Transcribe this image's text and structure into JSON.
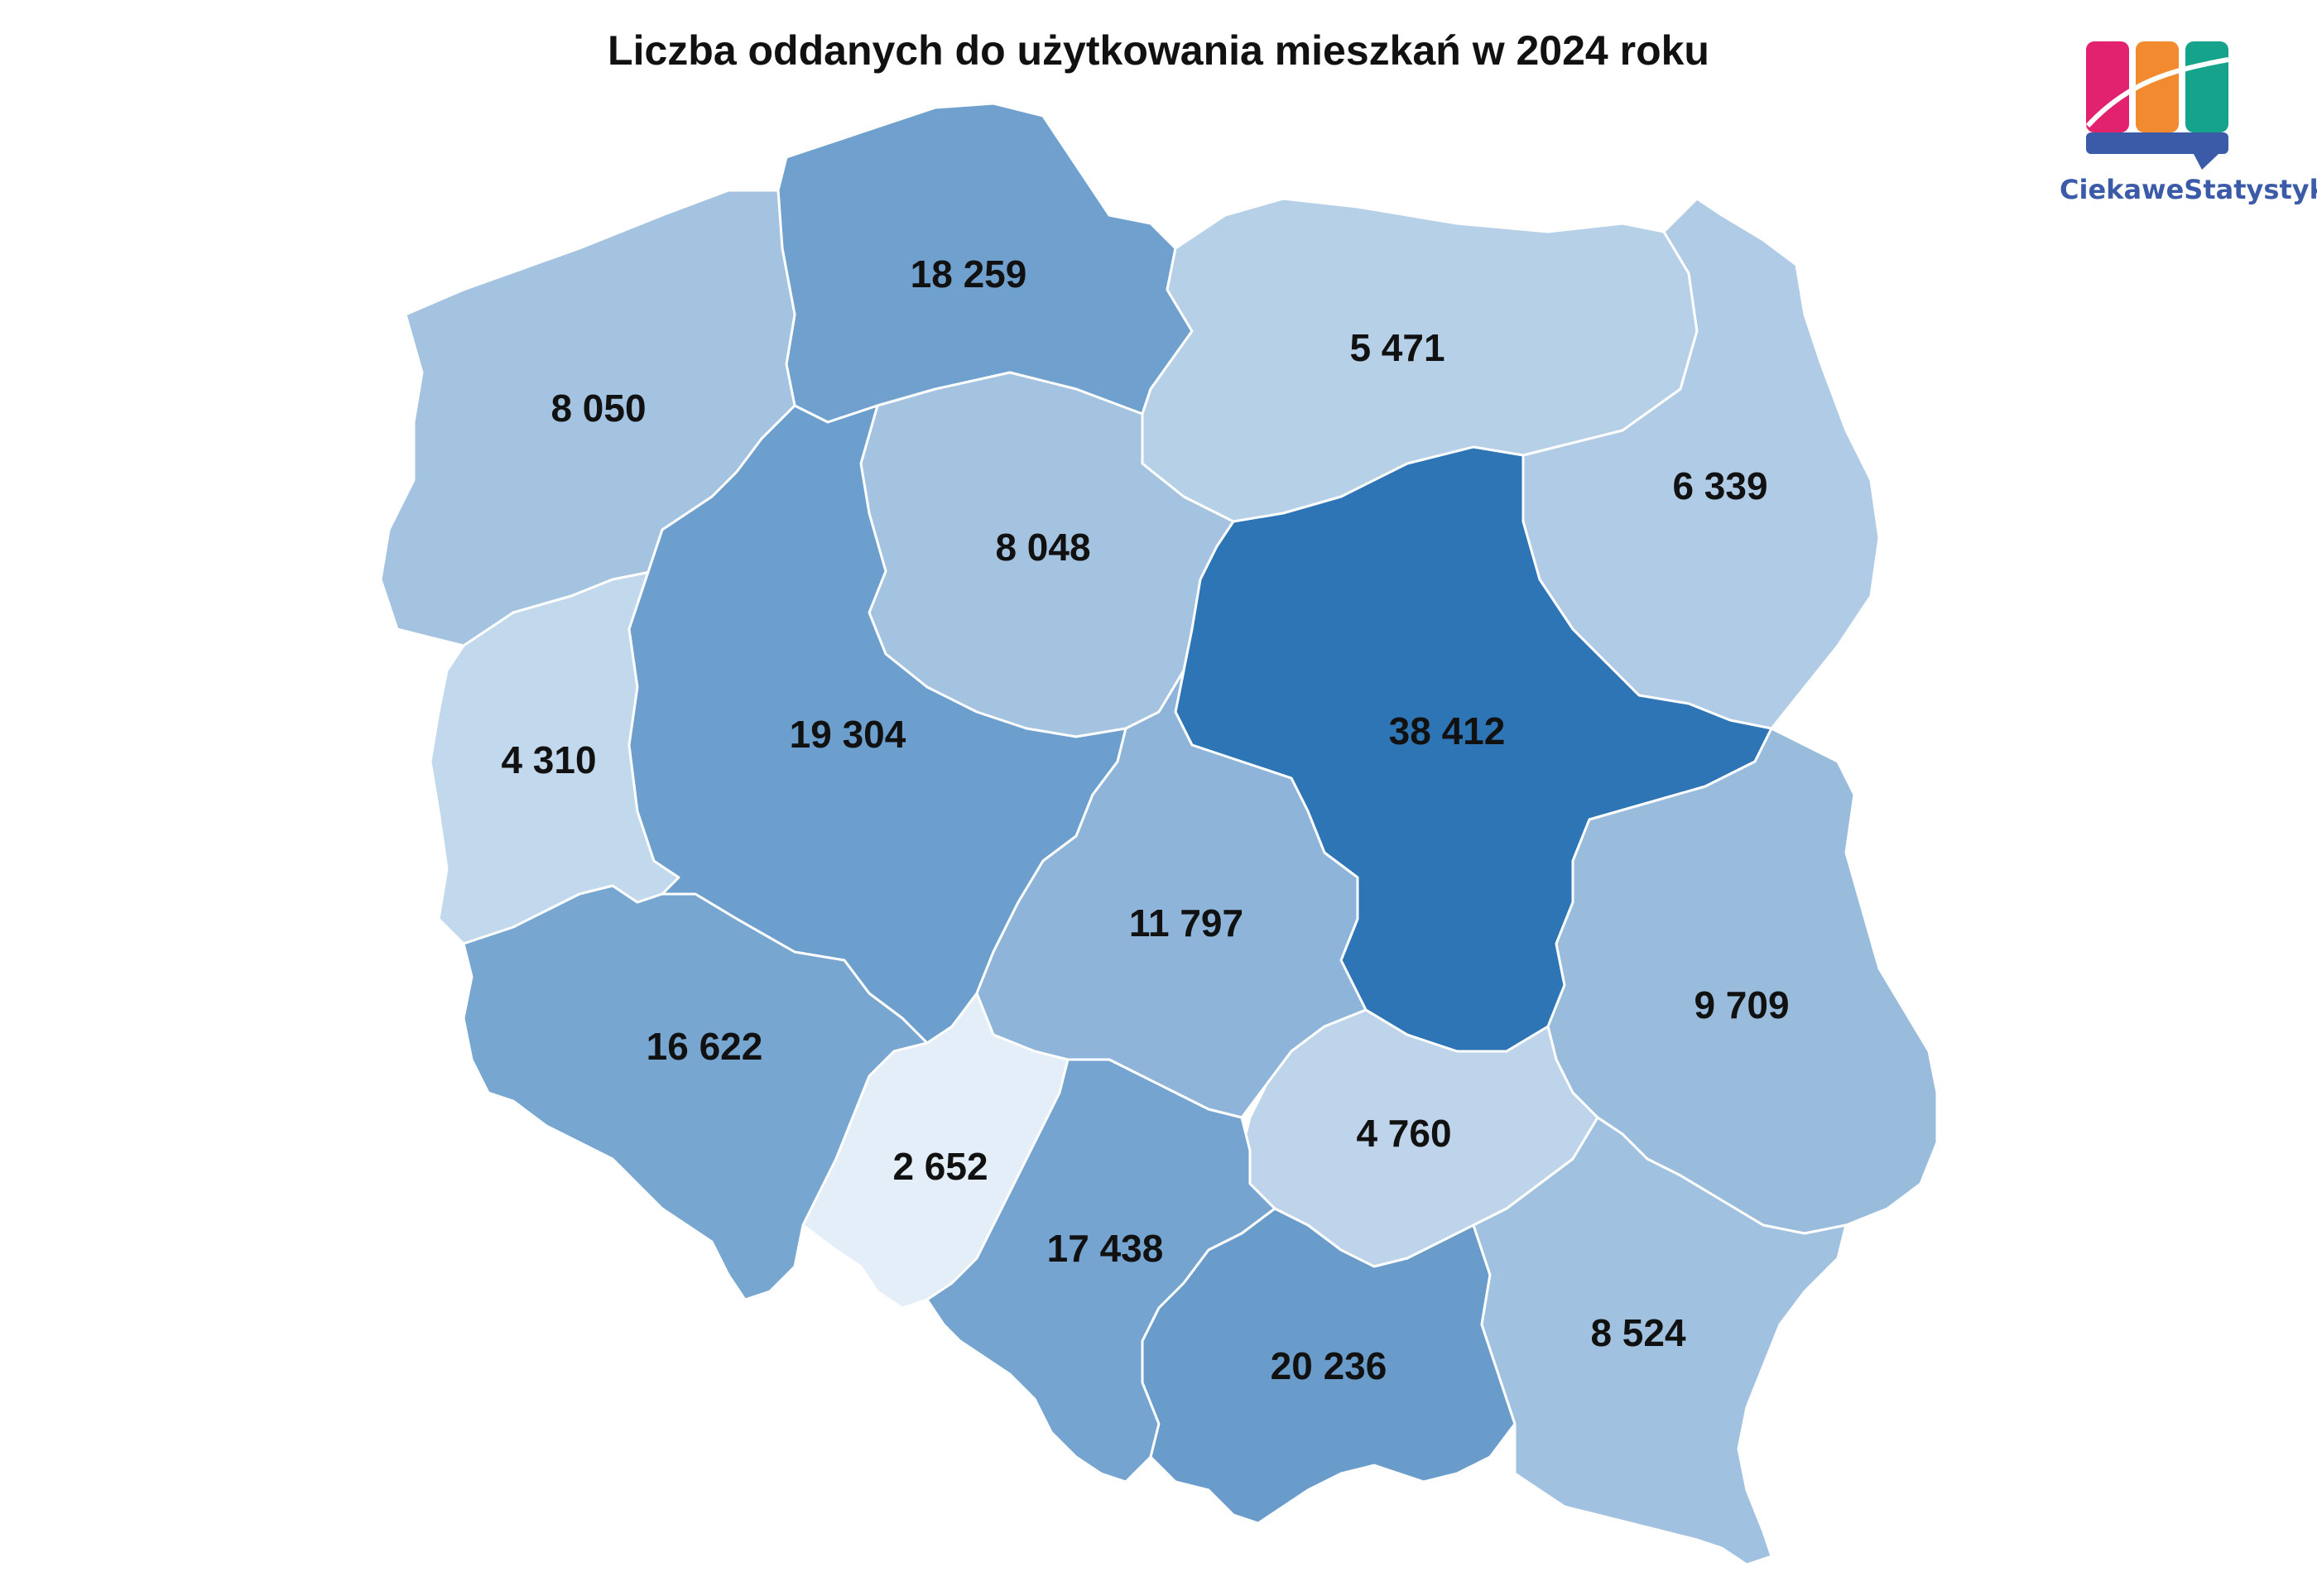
{
  "title": "Liczba oddanych do użytkowania mieszkań w 2024 roku",
  "brand": {
    "name": "CiekaweStatystyki.pl",
    "colors": [
      "#e3226f",
      "#f28a30",
      "#15a38c",
      "#3b5aa8"
    ]
  },
  "color_scale": {
    "min_color": "#e3eef8",
    "max_color": "#2e75b6"
  },
  "regions": [
    {
      "id": "pomorskie",
      "value": "18 259",
      "number": 18259
    },
    {
      "id": "zachodniopomorskie",
      "value": "8 050",
      "number": 8050
    },
    {
      "id": "warminsko-mazurskie",
      "value": "5 471",
      "number": 5471
    },
    {
      "id": "podlaskie",
      "value": "6 339",
      "number": 6339
    },
    {
      "id": "kujawsko-pomorskie",
      "value": "8 048",
      "number": 8048
    },
    {
      "id": "mazowieckie",
      "value": "38 412",
      "number": 38412
    },
    {
      "id": "lubuskie",
      "value": "4 310",
      "number": 4310
    },
    {
      "id": "wielkopolskie",
      "value": "19 304",
      "number": 19304
    },
    {
      "id": "lodzkie",
      "value": "11 797",
      "number": 11797
    },
    {
      "id": "lubelskie",
      "value": "9 709",
      "number": 9709
    },
    {
      "id": "dolnoslaskie",
      "value": "16 622",
      "number": 16622
    },
    {
      "id": "opolskie",
      "value": "2 652",
      "number": 2652
    },
    {
      "id": "swietokrzyskie",
      "value": "4 760",
      "number": 4760
    },
    {
      "id": "slaskie",
      "value": "17 438",
      "number": 17438
    },
    {
      "id": "malopolskie",
      "value": "20 236",
      "number": 20236
    },
    {
      "id": "podkarpackie",
      "value": "8 524",
      "number": 8524
    }
  ]
}
